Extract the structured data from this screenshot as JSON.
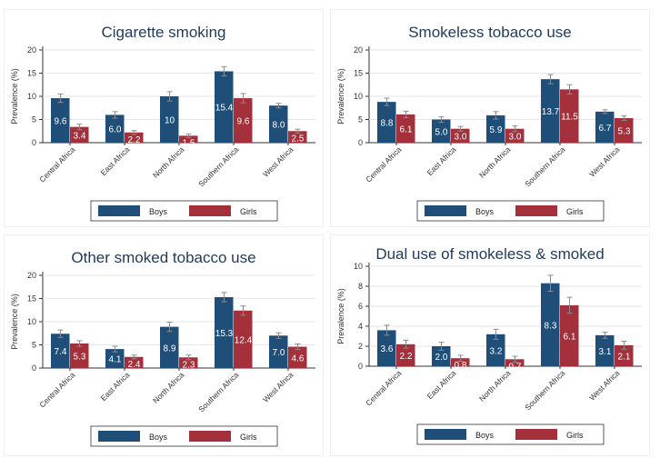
{
  "colors": {
    "boys": "#1f4e79",
    "girls": "#a3303a",
    "errorbar": "#8c8c8c",
    "title": "#1f3a5a"
  },
  "chart_data": [
    {
      "type": "bar",
      "title": "Cigarette smoking",
      "ylabel": "Prevalence (%)",
      "xlabel": "",
      "ylim": [
        0,
        20
      ],
      "yticks": [
        0,
        5,
        10,
        15,
        20
      ],
      "categories": [
        "Central Africa",
        "East Africa",
        "North Africa",
        "Southern Africa",
        "West Africa"
      ],
      "series": [
        {
          "name": "Boys",
          "values": [
            9.6,
            6.0,
            10,
            15.4,
            8.0
          ],
          "labels": [
            "9.6",
            "6.0",
            "10",
            "15.4",
            "8.0"
          ],
          "error": [
            0.9,
            0.7,
            1.0,
            1.0,
            0.5
          ]
        },
        {
          "name": "Girls",
          "values": [
            3.4,
            2.2,
            1.5,
            9.6,
            2.5
          ],
          "labels": [
            "3.4",
            "2.2",
            "1.5",
            "9.6",
            "2.5"
          ],
          "error": [
            0.6,
            0.4,
            0.4,
            1.0,
            0.4
          ]
        }
      ],
      "legend": [
        "Boys",
        "Girls"
      ]
    },
    {
      "type": "bar",
      "title": "Smokeless tobacco use",
      "ylabel": "Prevalence (%)",
      "xlabel": "",
      "ylim": [
        0,
        20
      ],
      "yticks": [
        0,
        5,
        10,
        15,
        20
      ],
      "categories": [
        "Central Africa",
        "East Africa",
        "North Africa",
        "Southern Africa",
        "West Africa"
      ],
      "series": [
        {
          "name": "Boys",
          "values": [
            8.8,
            5.0,
            5.9,
            13.7,
            6.7
          ],
          "labels": [
            "8.8",
            "5.0",
            "5.9",
            "13.7",
            "6.7"
          ],
          "error": [
            0.8,
            0.6,
            0.8,
            1.0,
            0.4
          ]
        },
        {
          "name": "Girls",
          "values": [
            6.1,
            3.0,
            3.0,
            11.5,
            5.3
          ],
          "labels": [
            "6.1",
            "3.0",
            "3.0",
            "11.5",
            "5.3"
          ],
          "error": [
            0.7,
            0.5,
            0.6,
            1.0,
            0.5
          ]
        }
      ],
      "legend": [
        "Boys",
        "Girls"
      ]
    },
    {
      "type": "bar",
      "title": "Other smoked tobacco use",
      "ylabel": "Prevalence (%)",
      "xlabel": "",
      "ylim": [
        0,
        20
      ],
      "yticks": [
        0,
        5,
        10,
        15,
        20
      ],
      "categories": [
        "Central Africa",
        "East Africa",
        "North Africa",
        "Southern Africa",
        "West Africa"
      ],
      "series": [
        {
          "name": "Boys",
          "values": [
            7.4,
            4.1,
            8.9,
            15.3,
            7.0
          ],
          "labels": [
            "7.4",
            "4.1",
            "8.9",
            "15.3",
            "7.0"
          ],
          "error": [
            0.8,
            0.6,
            1.0,
            1.0,
            0.6
          ]
        },
        {
          "name": "Girls",
          "values": [
            5.3,
            2.4,
            2.3,
            12.4,
            4.6
          ],
          "labels": [
            "5.3",
            "2.4",
            "2.3",
            "12.4",
            "4.6"
          ],
          "error": [
            0.6,
            0.4,
            0.5,
            1.0,
            0.6
          ]
        }
      ],
      "legend": [
        "Boys",
        "Girls"
      ]
    },
    {
      "type": "bar",
      "title": "Dual use of smokeless & smoked",
      "ylabel": "Prevalence (%)",
      "xlabel": "",
      "ylim": [
        0,
        10
      ],
      "yticks": [
        0,
        2,
        4,
        6,
        8,
        10
      ],
      "categories": [
        "Central Africa",
        "East Africa",
        "North Africa",
        "Southern Africa",
        "West Africa"
      ],
      "series": [
        {
          "name": "Boys",
          "values": [
            3.6,
            2.0,
            3.2,
            8.3,
            3.1
          ],
          "labels": [
            "3.6",
            "2.0",
            "3.2",
            "8.3",
            "3.1"
          ],
          "error": [
            0.5,
            0.4,
            0.5,
            0.8,
            0.3
          ]
        },
        {
          "name": "Girls",
          "values": [
            2.2,
            0.8,
            0.7,
            6.1,
            2.1
          ],
          "labels": [
            "2.2",
            "0.8",
            "0.7",
            "6.1",
            "2.1"
          ],
          "error": [
            0.4,
            0.3,
            0.3,
            0.8,
            0.4
          ]
        }
      ],
      "legend": [
        "Boys",
        "Girls"
      ]
    }
  ]
}
